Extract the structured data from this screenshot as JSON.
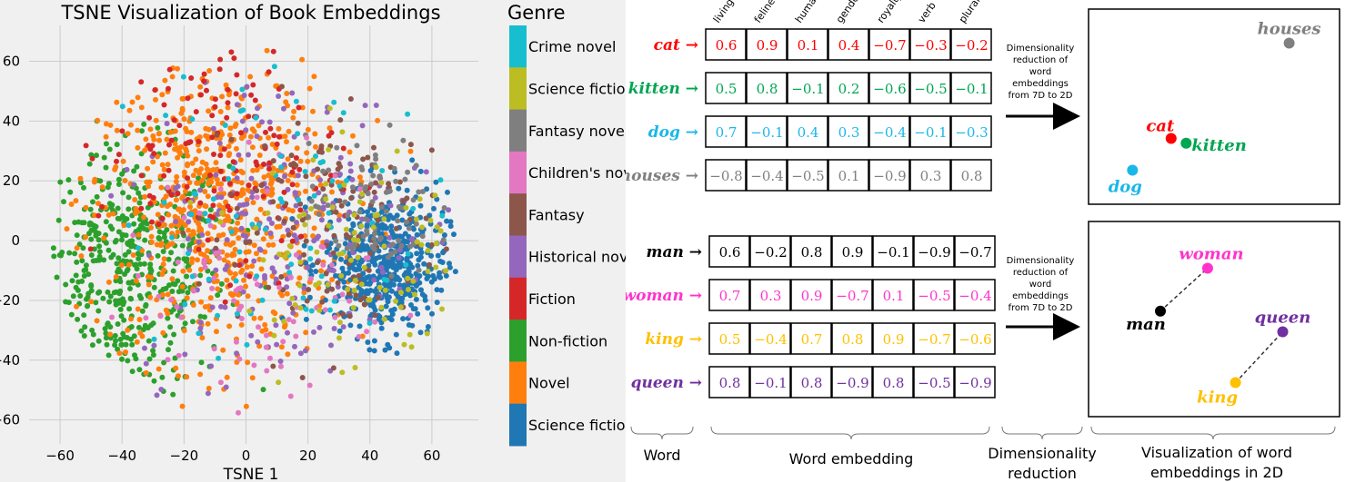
{
  "tsne_chart": {
    "title": "TSNE Visualization of Book Embeddings",
    "xlabel": "TSNE 1",
    "xticks": [
      "−60",
      "−40",
      "−20",
      "0",
      "20",
      "40",
      "60"
    ],
    "yticks": [
      "60",
      "40",
      "20",
      "0",
      "−20",
      "−40",
      "−60"
    ],
    "legend_title": "Genre",
    "legend": [
      {
        "label": "Crime novel",
        "color": "#17becf"
      },
      {
        "label": "Science fiction",
        "color": "#bcbd22"
      },
      {
        "label": "Fantasy novel",
        "color": "#7f7f7f"
      },
      {
        "label": "Children's novel",
        "color": "#e377c2"
      },
      {
        "label": "Fantasy",
        "color": "#8c564b"
      },
      {
        "label": "Historical novel",
        "color": "#9467bd"
      },
      {
        "label": "Fiction",
        "color": "#d62728"
      },
      {
        "label": "Non-fiction",
        "color": "#2ca02c"
      },
      {
        "label": "Novel",
        "color": "#ff7f0e"
      },
      {
        "label": "Science fiction",
        "color": "#1f77b4"
      }
    ]
  },
  "chart_data": [
    {
      "type": "scatter",
      "title": "TSNE Visualization of Book Embeddings",
      "xlabel": "TSNE 1",
      "ylabel": "",
      "xlim": [
        -70,
        75
      ],
      "ylim": [
        -68,
        72
      ],
      "grid": true,
      "legend_position": "right, outside plot (colorbar-style)",
      "series": [
        {
          "name": "Non-fiction",
          "color": "#2ca02c",
          "center": [
            -38,
            -10
          ],
          "spread": [
            16,
            20
          ],
          "count": 520
        },
        {
          "name": "Novel",
          "color": "#ff7f0e",
          "center": [
            -10,
            10
          ],
          "spread": [
            20,
            25
          ],
          "count": 700
        },
        {
          "name": "Science fiction",
          "color": "#1f77b4",
          "center": [
            45,
            -8
          ],
          "spread": [
            10,
            12
          ],
          "count": 520
        },
        {
          "name": "Historical novel",
          "color": "#9467bd",
          "center": [
            12,
            5
          ],
          "spread": [
            24,
            26
          ],
          "count": 240
        },
        {
          "name": "Fiction",
          "color": "#d62728",
          "center": [
            -10,
            30
          ],
          "spread": [
            20,
            20
          ],
          "count": 160
        },
        {
          "name": "Fantasy",
          "color": "#8c564b",
          "center": [
            25,
            5
          ],
          "spread": [
            20,
            22
          ],
          "count": 140
        },
        {
          "name": "Fantasy novel",
          "color": "#7f7f7f",
          "center": [
            40,
            10
          ],
          "spread": [
            10,
            12
          ],
          "count": 90
        },
        {
          "name": "Children's novel",
          "color": "#e377c2",
          "center": [
            5,
            -15
          ],
          "spread": [
            22,
            22
          ],
          "count": 90
        },
        {
          "name": "Crime novel",
          "color": "#17becf",
          "center": [
            10,
            10
          ],
          "spread": [
            25,
            25
          ],
          "count": 90
        },
        {
          "name": "Science fiction",
          "color": "#bcbd22",
          "center": [
            35,
            -5
          ],
          "spread": [
            18,
            20
          ],
          "count": 110
        }
      ]
    },
    {
      "type": "table",
      "title": "Word embedding",
      "columns": [
        "living",
        "feline",
        "human",
        "gender",
        "royalty",
        "verb",
        "plural"
      ],
      "rows": [
        {
          "word": "cat",
          "color": "#ff0000",
          "values": [
            "0.6",
            "0.9",
            "0.1",
            "0.4",
            "−0.7",
            "−0.3",
            "−0.2"
          ]
        },
        {
          "word": "kitten",
          "color": "#00a651",
          "values": [
            "0.5",
            "0.8",
            "−0.1",
            "0.2",
            "−0.6",
            "−0.5",
            "−0.1"
          ]
        },
        {
          "word": "dog",
          "color": "#1ab7ea",
          "values": [
            "0.7",
            "−0.1",
            "0.4",
            "0.3",
            "−0.4",
            "−0.1",
            "−0.3"
          ]
        },
        {
          "word": "houses",
          "color": "#808080",
          "values": [
            "−0.8",
            "−0.4",
            "−0.5",
            "0.1",
            "−0.9",
            "0.3",
            "0.8"
          ]
        },
        {
          "word": "man",
          "color": "#000000",
          "values": [
            "0.6",
            "−0.2",
            "0.8",
            "0.9",
            "−0.1",
            "−0.9",
            "−0.7"
          ]
        },
        {
          "word": "woman",
          "color": "#ff33cc",
          "values": [
            "0.7",
            "0.3",
            "0.9",
            "−0.7",
            "0.1",
            "−0.5",
            "−0.4"
          ]
        },
        {
          "word": "king",
          "color": "#ffc000",
          "values": [
            "0.5",
            "−0.4",
            "0.7",
            "0.8",
            "0.9",
            "−0.7",
            "−0.6"
          ]
        },
        {
          "word": "queen",
          "color": "#7030a0",
          "values": [
            "0.8",
            "−0.1",
            "0.8",
            "−0.9",
            "0.8",
            "−0.5",
            "−0.9"
          ]
        }
      ]
    },
    {
      "type": "scatter",
      "title": "Visualization of word embeddings in 2D",
      "series": [
        {
          "name": "houses",
          "x": 0.85,
          "y": 0.9
        },
        {
          "name": "cat",
          "x": 0.3,
          "y": 0.3
        },
        {
          "name": "kitten",
          "x": 0.37,
          "y": 0.27
        },
        {
          "name": "dog",
          "x": 0.12,
          "y": 0.1
        }
      ]
    },
    {
      "type": "scatter",
      "title": "Visualization of word embeddings in 2D",
      "series": [
        {
          "name": "woman",
          "x": 0.47,
          "y": 0.82
        },
        {
          "name": "man",
          "x": 0.25,
          "y": 0.55
        },
        {
          "name": "queen",
          "x": 0.82,
          "y": 0.42
        },
        {
          "name": "king",
          "x": 0.6,
          "y": 0.1
        }
      ]
    }
  ],
  "diagram": {
    "arrow_text": [
      "Dimensionality",
      "reduction of",
      "word",
      "embeddings",
      "from 7D to 2D"
    ],
    "arrow_text_2": [
      "Dimensionality",
      "reduction of",
      "word",
      "embeddings",
      "from 7D to 2D"
    ],
    "footer_word": "Word",
    "footer_embedding": "Word embedding",
    "footer_reduction": [
      "Dimensionality",
      "reduction"
    ],
    "footer_viz": [
      "Visualization of word",
      "embeddings  in 2D"
    ]
  }
}
